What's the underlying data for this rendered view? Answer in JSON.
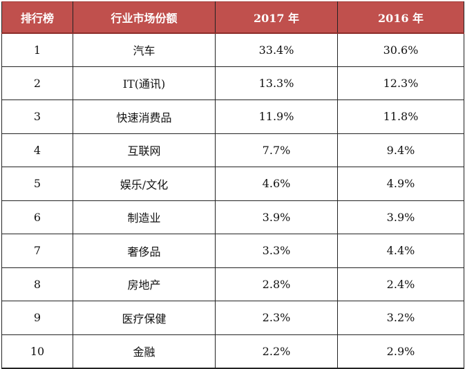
{
  "table": {
    "header": {
      "rank": "排行榜",
      "industry": "行业市场份额",
      "y2017": "2017 年",
      "y2016": "2016 年"
    },
    "rows": [
      {
        "rank": "1",
        "industry": "汽车",
        "y2017": "33.4%",
        "y2016": "30.6%"
      },
      {
        "rank": "2",
        "industry": "IT(通讯)",
        "y2017": "13.3%",
        "y2016": "12.3%"
      },
      {
        "rank": "3",
        "industry": "快速消费品",
        "y2017": "11.9%",
        "y2016": "11.8%"
      },
      {
        "rank": "4",
        "industry": "互联网",
        "y2017": "7.7%",
        "y2016": "9.4%"
      },
      {
        "rank": "5",
        "industry": "娱乐/文化",
        "y2017": "4.6%",
        "y2016": "4.9%"
      },
      {
        "rank": "6",
        "industry": "制造业",
        "y2017": "3.9%",
        "y2016": "3.9%"
      },
      {
        "rank": "7",
        "industry": "奢侈品",
        "y2017": "3.3%",
        "y2016": "4.4%"
      },
      {
        "rank": "8",
        "industry": "房地产",
        "y2017": "2.8%",
        "y2016": "2.4%"
      },
      {
        "rank": "9",
        "industry": "医疗保健",
        "y2017": "2.3%",
        "y2016": "3.2%"
      },
      {
        "rank": "10",
        "industry": "金融",
        "y2017": "2.2%",
        "y2016": "2.9%"
      }
    ]
  }
}
